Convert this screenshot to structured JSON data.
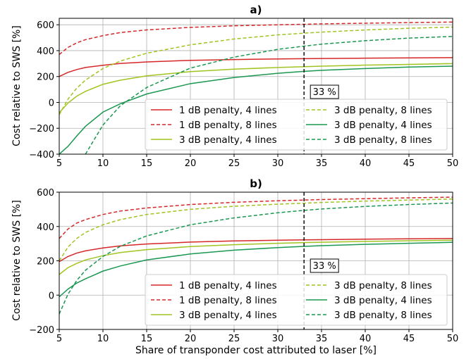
{
  "chart_data": [
    {
      "type": "line",
      "title": "a)",
      "xlabel": "",
      "ylabel": "Cost relative to SWS [%]",
      "xlim": [
        5,
        50
      ],
      "ylim": [
        -400,
        650
      ],
      "x_ticks": [
        "5",
        "10",
        "15",
        "20",
        "25",
        "30",
        "35",
        "40",
        "45",
        "50"
      ],
      "y_ticks": [
        "−400",
        "−200",
        "0",
        "200",
        "400",
        "600"
      ],
      "y_tick_values": [
        -400,
        -200,
        0,
        200,
        400,
        600
      ],
      "grid": true,
      "legend_position": "lower-right",
      "annotation": {
        "text": "33 %",
        "x": 33
      },
      "vline_x": 33,
      "x": [
        5,
        6,
        7,
        8,
        10,
        12,
        15,
        20,
        25,
        30,
        33,
        35,
        40,
        45,
        50
      ],
      "series": [
        {
          "name": "1 dB penalty, 4 lines",
          "color": "#d62728",
          "dash": "solid",
          "values": [
            200,
            232,
            254,
            270,
            287,
            301,
            313,
            325,
            331,
            336,
            338,
            339,
            342,
            344,
            346
          ]
        },
        {
          "name": "1 dB penalty, 8 lines",
          "color": "#d62728",
          "dash": "dashed",
          "values": [
            370,
            425,
            460,
            485,
            516,
            540,
            560,
            580,
            592,
            600,
            604,
            607,
            612,
            617,
            621
          ]
        },
        {
          "name": "3 dB penalty, 4 lines",
          "color": "#a1c420",
          "dash": "solid",
          "values": [
            -80,
            -5,
            48,
            85,
            140,
            172,
            205,
            238,
            257,
            270,
            276,
            280,
            288,
            294,
            300
          ]
        },
        {
          "name": "3 dB penalty, 8 lines",
          "color": "#a1c420",
          "dash": "dashed",
          "values": [
            -95,
            25,
            110,
            172,
            262,
            320,
            380,
            445,
            490,
            522,
            535,
            543,
            560,
            573,
            582
          ]
        },
        {
          "name": "3 dB penalty, 4 lines",
          "color": "#1a9850",
          "dash": "solid",
          "values": [
            -400,
            -340,
            -260,
            -185,
            -75,
            -10,
            65,
            145,
            192,
            225,
            240,
            248,
            262,
            273,
            280
          ]
        },
        {
          "name": "3 dB penalty, 8 lines",
          "color": "#1a9850",
          "dash": "dashed",
          "values": [
            null,
            null,
            null,
            -400,
            -175,
            -25,
            115,
            265,
            350,
            410,
            435,
            450,
            477,
            497,
            510
          ]
        }
      ]
    },
    {
      "type": "line",
      "title": "b)",
      "xlabel": "Share of transponder cost attributed to laser [%]",
      "ylabel": "Cost relative to SWS [%]",
      "xlim": [
        5,
        50
      ],
      "ylim": [
        -200,
        600
      ],
      "x_ticks": [
        "5",
        "10",
        "15",
        "20",
        "25",
        "30",
        "35",
        "40",
        "45",
        "50"
      ],
      "y_ticks": [
        "−200",
        "0",
        "200",
        "400",
        "600"
      ],
      "y_tick_values": [
        -200,
        0,
        200,
        400,
        600
      ],
      "grid": true,
      "legend_position": "lower-right",
      "annotation": {
        "text": "33 %",
        "x": 33
      },
      "vline_x": 33,
      "x": [
        5,
        6,
        7,
        8,
        10,
        12,
        15,
        20,
        25,
        30,
        33,
        35,
        40,
        45,
        50
      ],
      "series": [
        {
          "name": "1 dB penalty, 4 lines",
          "color": "#d62728",
          "dash": "solid",
          "values": [
            195,
            225,
            245,
            258,
            275,
            287,
            298,
            309,
            316,
            320,
            322,
            323,
            326,
            328,
            330
          ]
        },
        {
          "name": "1 dB penalty, 8 lines",
          "color": "#d62728",
          "dash": "dashed",
          "values": [
            330,
            385,
            420,
            440,
            470,
            490,
            508,
            528,
            541,
            550,
            554,
            557,
            562,
            567,
            571
          ]
        },
        {
          "name": "3 dB penalty, 4 lines",
          "color": "#a1c420",
          "dash": "solid",
          "values": [
            120,
            160,
            185,
            205,
            230,
            248,
            265,
            283,
            294,
            302,
            306,
            308,
            313,
            317,
            320
          ]
        },
        {
          "name": "3 dB penalty, 8 lines",
          "color": "#a1c420",
          "dash": "dashed",
          "values": [
            200,
            280,
            330,
            365,
            410,
            440,
            470,
            500,
            518,
            530,
            536,
            540,
            548,
            554,
            560
          ]
        },
        {
          "name": "3 dB penalty, 4 lines",
          "color": "#1a9850",
          "dash": "solid",
          "values": [
            -10,
            35,
            70,
            95,
            140,
            170,
            205,
            240,
            262,
            277,
            284,
            288,
            296,
            302,
            308
          ]
        },
        {
          "name": "3 dB penalty, 8 lines",
          "color": "#1a9850",
          "dash": "dashed",
          "values": [
            -110,
            5,
            85,
            145,
            225,
            285,
            345,
            410,
            450,
            480,
            494,
            502,
            517,
            528,
            537
          ]
        }
      ]
    }
  ]
}
